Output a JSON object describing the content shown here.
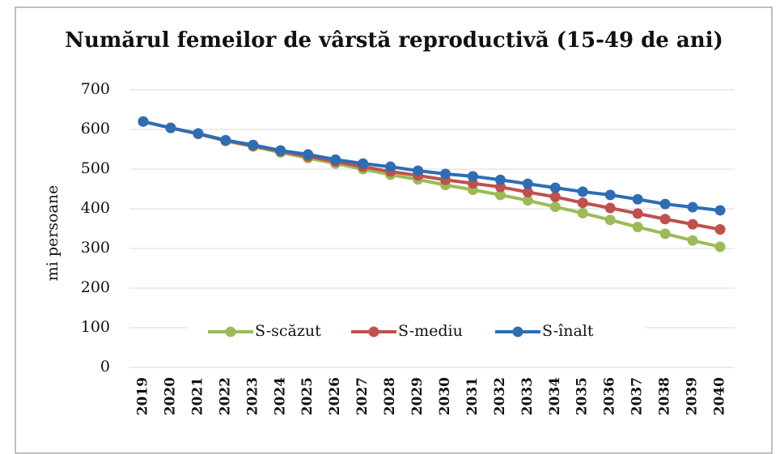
{
  "chart_data": {
    "type": "line",
    "title": "Numărul femeilor de vârstă reproductivă (15-49 de ani)",
    "y_label": "mi persoane",
    "categories": [
      "2019",
      "2020",
      "2021",
      "2022",
      "2023",
      "2024",
      "2025",
      "2026",
      "2027",
      "2028",
      "2029",
      "2030",
      "2031",
      "2032",
      "2033",
      "2034",
      "2035",
      "2036",
      "2037",
      "2038",
      "2039",
      "2040"
    ],
    "series": [
      {
        "name": "S-scăzut",
        "color": "#9bbb59",
        "values": [
          620,
          604,
          589,
          571,
          557,
          542,
          528,
          514,
          500,
          486,
          474,
          460,
          448,
          435,
          421,
          405,
          389,
          372,
          354,
          337,
          320,
          304
        ]
      },
      {
        "name": "S-mediu",
        "color": "#c0504d",
        "values": [
          620,
          604,
          589,
          572,
          559,
          545,
          532,
          519,
          506,
          494,
          484,
          473,
          464,
          455,
          442,
          430,
          415,
          402,
          388,
          374,
          361,
          348
        ]
      },
      {
        "name": "S-înalt",
        "color": "#2e6db4",
        "values": [
          620,
          604,
          590,
          573,
          561,
          547,
          537,
          524,
          514,
          506,
          496,
          488,
          482,
          473,
          463,
          453,
          443,
          435,
          424,
          412,
          404,
          396
        ]
      }
    ],
    "ylim": [
      0,
      700
    ],
    "yticks": [
      0,
      100,
      200,
      300,
      400,
      500,
      600,
      700
    ],
    "grid": true,
    "legend": "bottom"
  }
}
